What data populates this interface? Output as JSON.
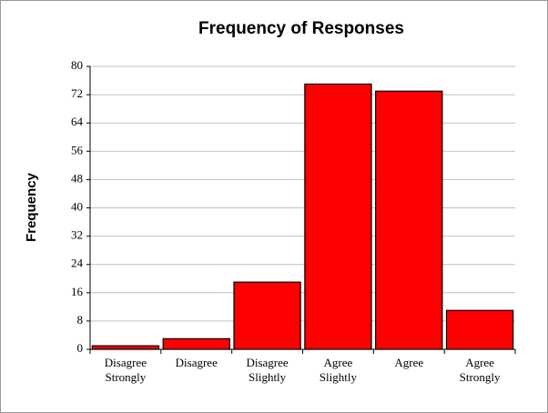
{
  "chart_data": {
    "type": "bar",
    "title": "Frequency of Responses",
    "y_label": "Frequency",
    "categories": [
      "Disagree Strongly",
      "Disagree",
      "Disagree Slightly",
      "Agree Slightly",
      "Agree",
      "Agree Strongly"
    ],
    "values": [
      1,
      3,
      19,
      75,
      73,
      11
    ],
    "color": "#ff0000",
    "ylim": [
      0,
      80
    ],
    "yticks": [
      0,
      8,
      16,
      24,
      32,
      40,
      48,
      56,
      64,
      72,
      80
    ],
    "grid": true
  }
}
